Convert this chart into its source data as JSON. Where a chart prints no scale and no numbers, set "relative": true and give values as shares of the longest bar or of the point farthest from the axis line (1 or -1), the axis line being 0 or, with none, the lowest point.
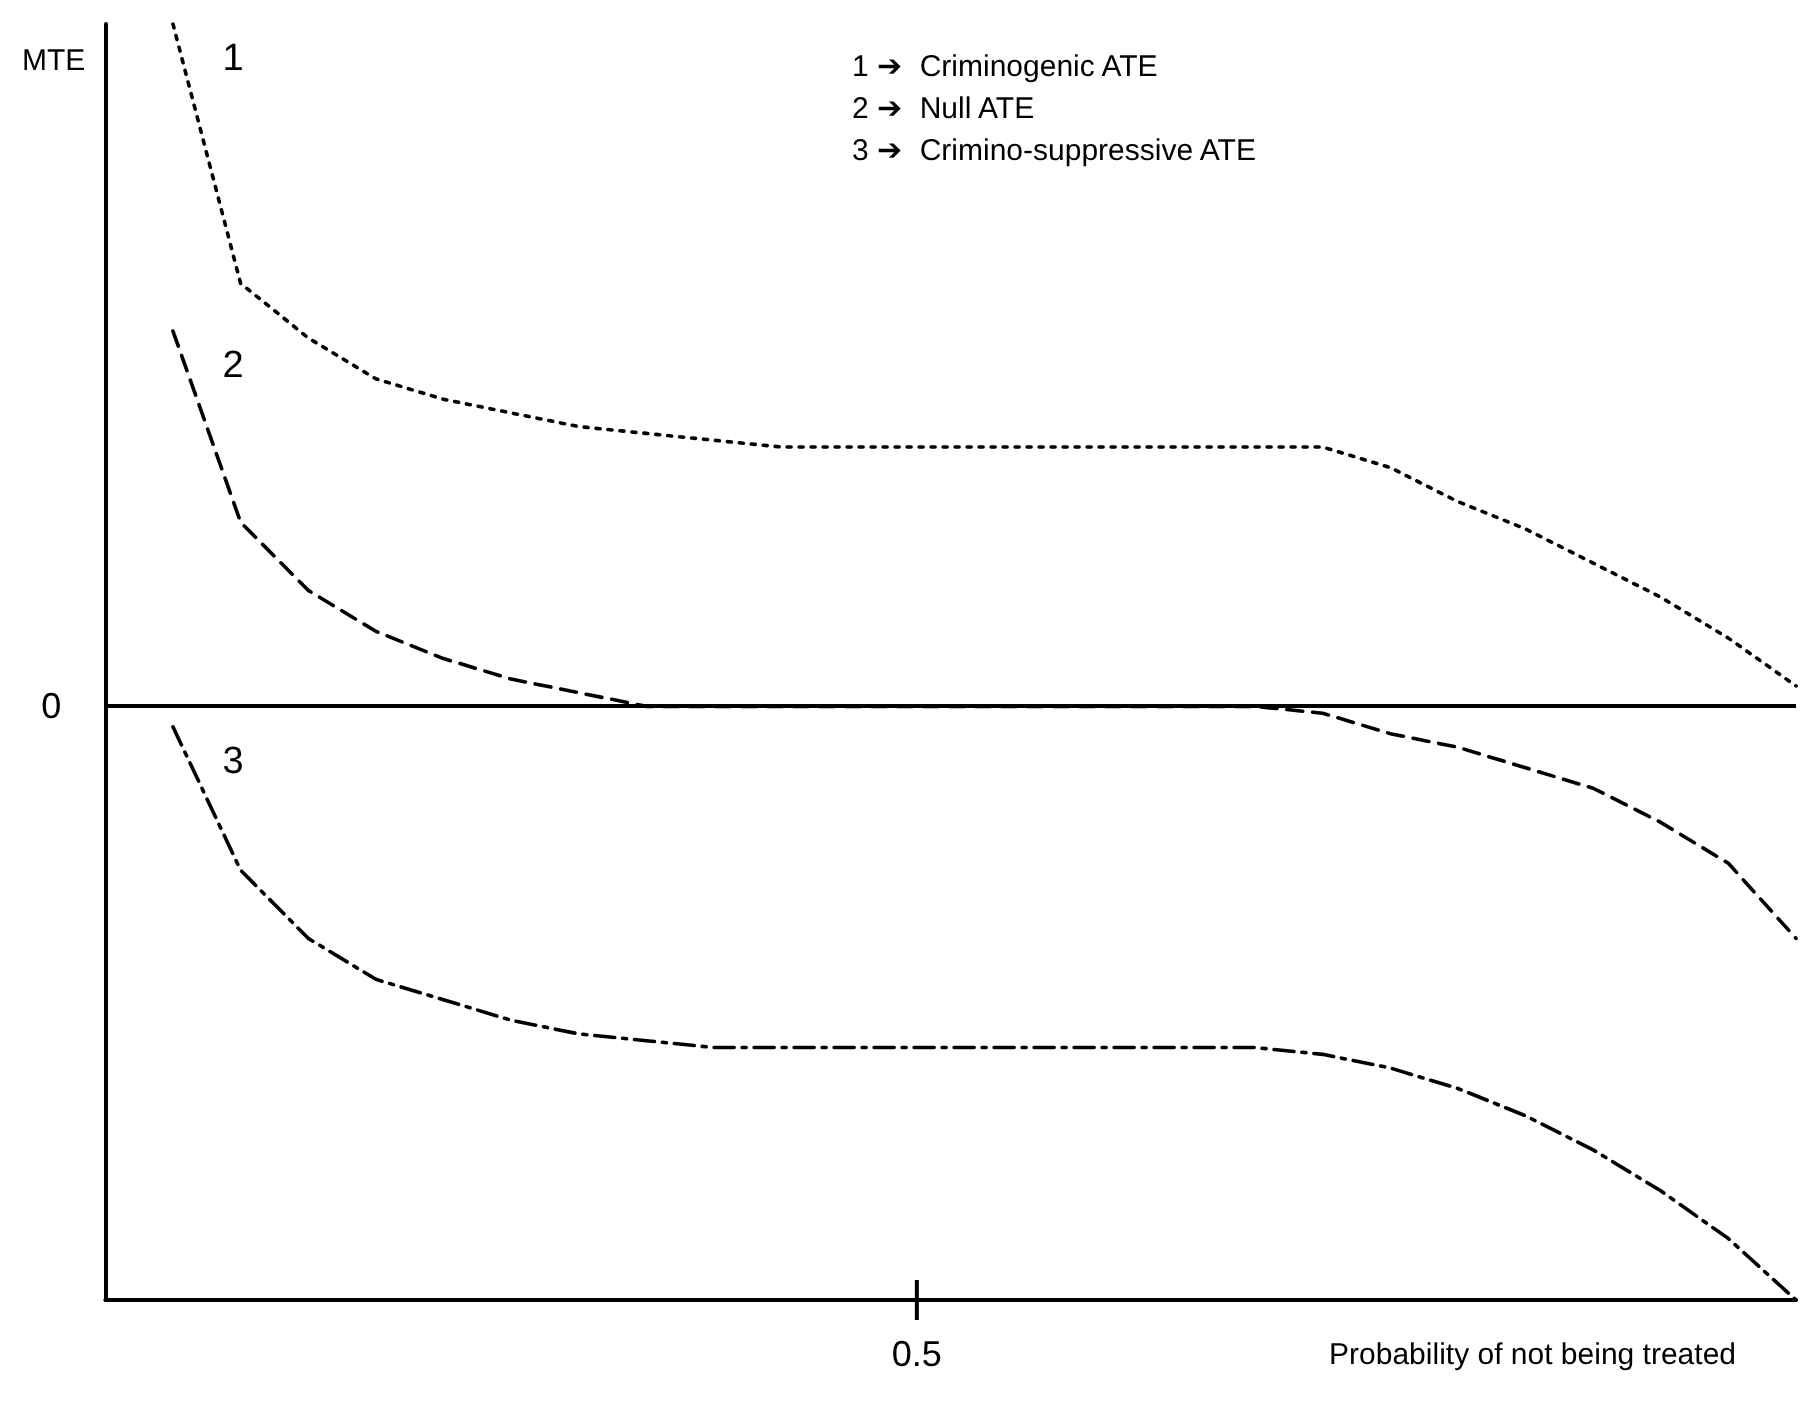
{
  "chart_data": {
    "type": "line",
    "relative": true,
    "ylabel": "MTE",
    "xlabel": "Probability of not being treated",
    "grid": false,
    "marker": "none",
    "categories": [
      null,
      null,
      null,
      null,
      null,
      null,
      null,
      null,
      null,
      null,
      null,
      null,
      null,
      null,
      null,
      null,
      null,
      null,
      null,
      null,
      null,
      null,
      null,
      null,
      null,
      null
    ],
    "series": [
      {
        "color": "#000000",
        "line_style": "dotted",
        "values": [
          null,
          1.0,
          0.62,
          0.54,
          0.48,
          0.45,
          0.43,
          0.41,
          0.4,
          0.39,
          0.38,
          0.38,
          0.38,
          0.38,
          0.38,
          0.38,
          0.38,
          0.38,
          0.38,
          0.35,
          0.3,
          0.26,
          0.21,
          0.16,
          0.1,
          0.03
        ]
      },
      {
        "color": "#000000",
        "line_style": "dashed",
        "values": [
          null,
          0.55,
          0.27,
          0.17,
          0.11,
          0.07,
          0.04,
          0.02,
          0.0,
          0.0,
          0.0,
          0.0,
          0.0,
          0.0,
          0.0,
          0.0,
          0.0,
          0.0,
          -0.01,
          -0.04,
          -0.06,
          -0.09,
          -0.12,
          -0.17,
          -0.23,
          -0.34
        ]
      },
      {
        "color": "#000000",
        "line_style": "dashdot",
        "values": [
          null,
          -0.03,
          -0.24,
          -0.34,
          -0.4,
          -0.43,
          -0.46,
          -0.48,
          -0.49,
          -0.5,
          -0.5,
          -0.5,
          -0.5,
          -0.5,
          -0.5,
          -0.5,
          -0.5,
          -0.5,
          -0.51,
          -0.53,
          -0.56,
          -0.6,
          -0.65,
          -0.71,
          -0.78,
          -0.87
        ]
      }
    ],
    "ref_lines": [
      {
        "axis": "y",
        "value": 0,
        "label": "0",
        "color": "#000000",
        "line_style": "solid"
      }
    ],
    "annotations": [
      {
        "text": "0.5"
      },
      "1",
      "2",
      "3",
      "1 ➔  Criminogenic ATE",
      "2 ➔  Null ATE",
      "3 ➔  Crimino-suppressive ATE"
    ]
  }
}
